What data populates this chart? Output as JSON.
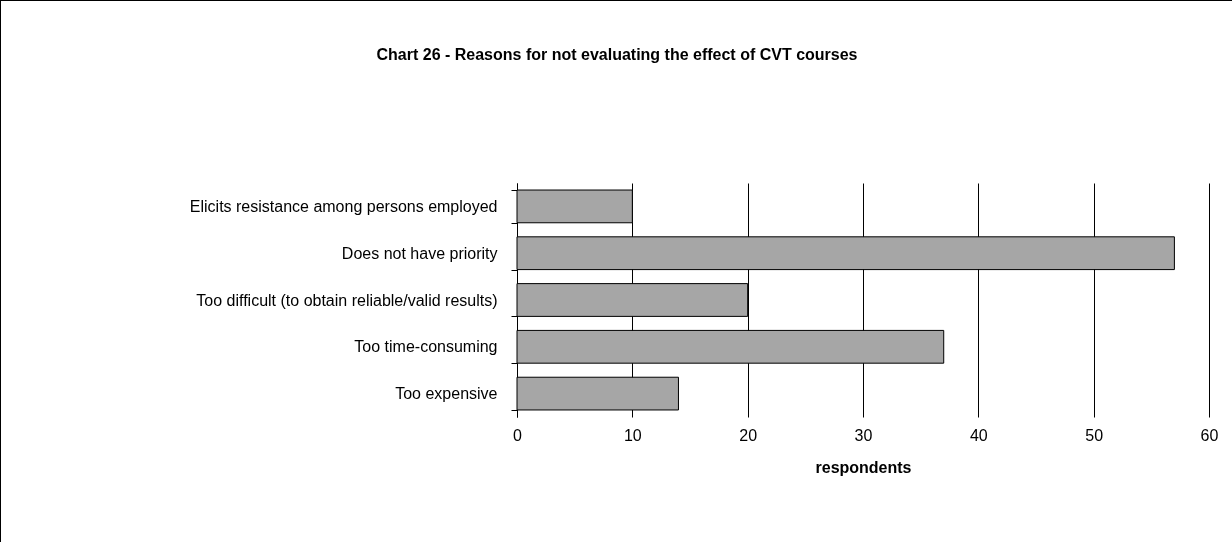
{
  "chart_data": {
    "type": "bar",
    "orientation": "horizontal",
    "title": "Chart 26 - Reasons for not evaluating the effect of CVT courses",
    "xlabel": "respondents",
    "categories": [
      "Elicits resistance among persons employed",
      "Does not have priority",
      "Too difficult (to obtain reliable/valid results)",
      "Too time-consuming",
      "Too expensive"
    ],
    "values": [
      10,
      57,
      20,
      37,
      14
    ],
    "color": "#a6a6a6",
    "xlim": [
      0,
      60
    ],
    "xticks": [
      0,
      10,
      20,
      30,
      40,
      50,
      60
    ],
    "grid": "x"
  }
}
